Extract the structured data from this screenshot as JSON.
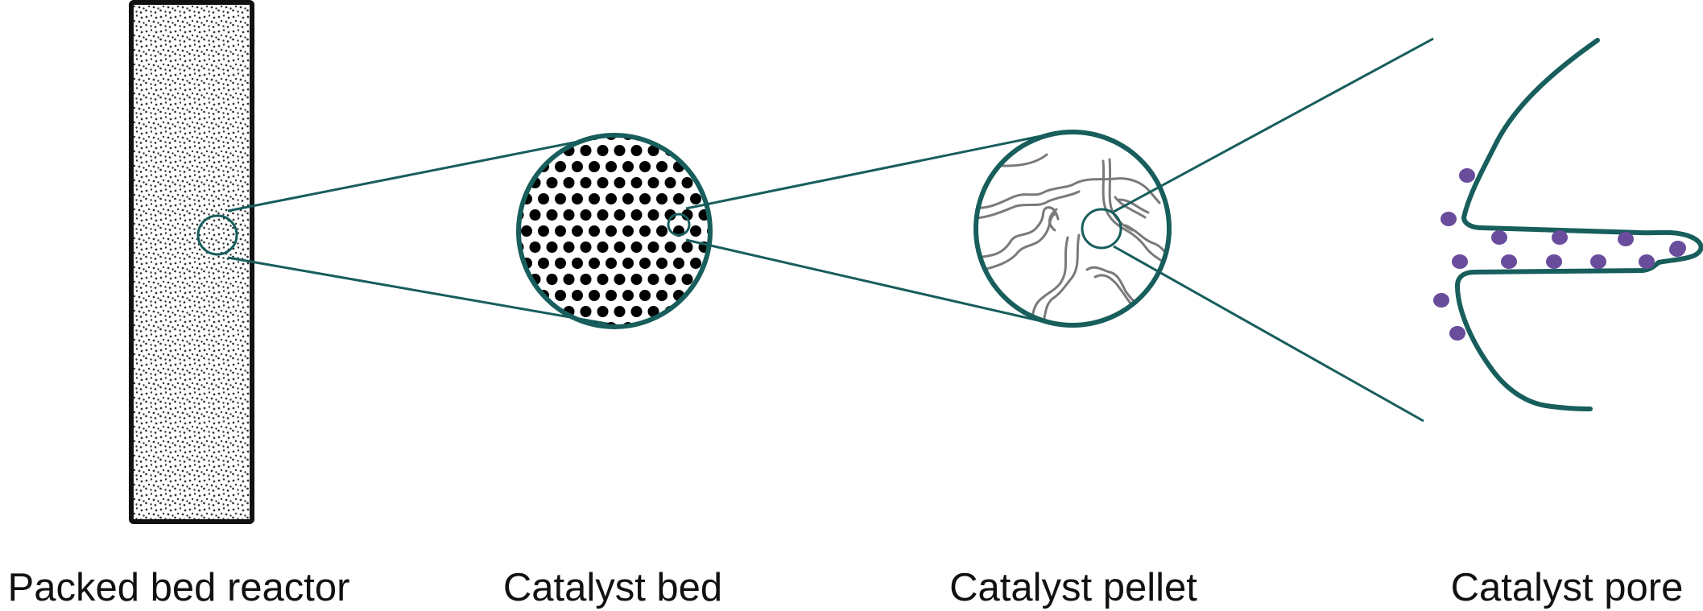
{
  "labels": {
    "packed_bed_reactor": "Packed bed reactor",
    "catalyst_bed": "Catalyst bed",
    "catalyst_pellet": "Catalyst pellet",
    "catalyst_pore": "Catalyst pore"
  },
  "colors": {
    "outline_teal": "#175e5c",
    "reactor_outline": "#111111",
    "reactor_stipple": "#333333",
    "pellet_dot": "#000000",
    "pore_channel_gray": "#808080",
    "active_site_purple": "#6a4c9c"
  }
}
